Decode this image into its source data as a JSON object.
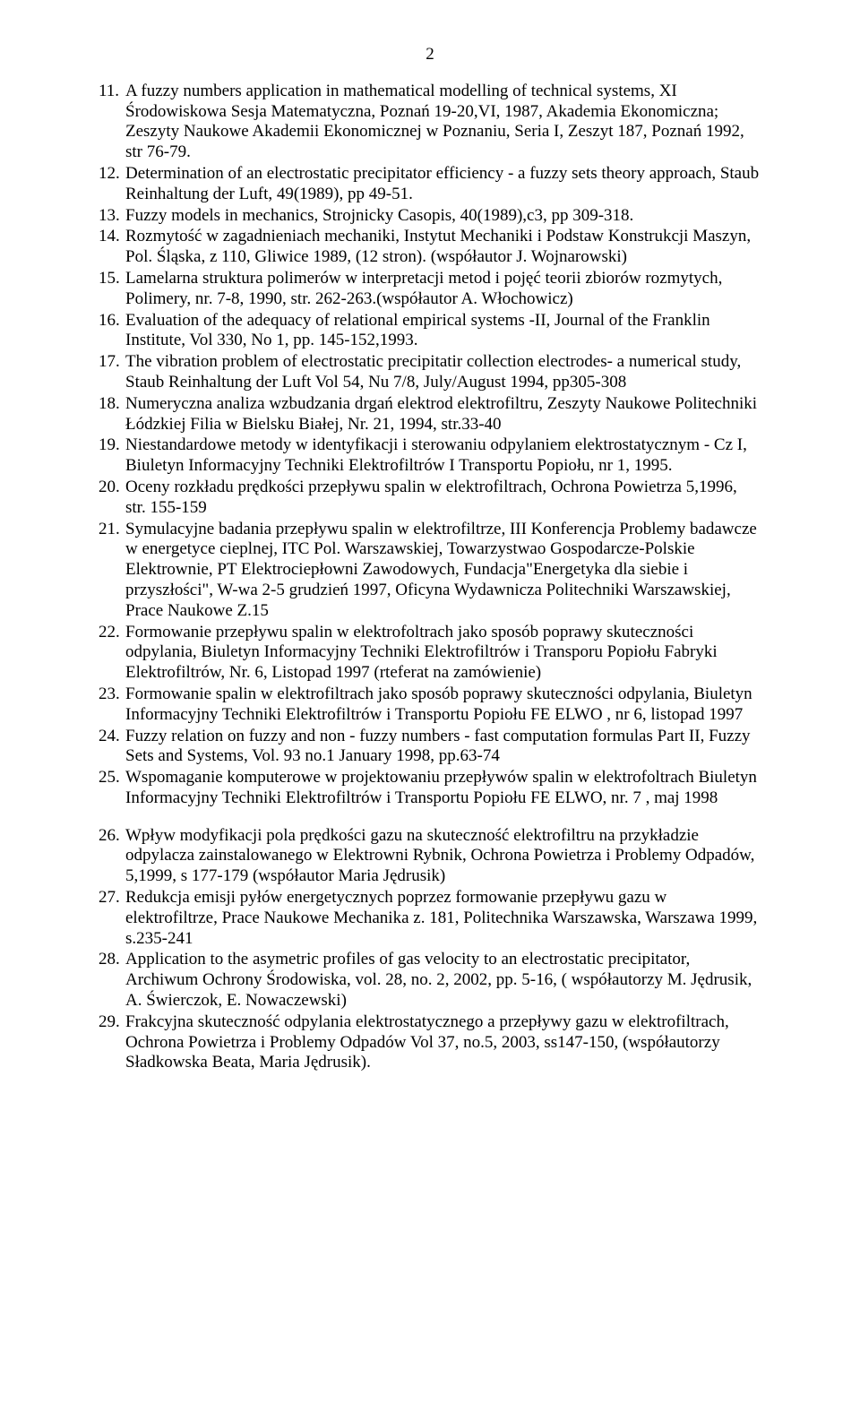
{
  "page_number": "2",
  "items": [
    {
      "n": "11.",
      "text": "A fuzzy numbers application in mathematical modelling of technical systems, XI Środowiskowa Sesja Matematyczna, Poznań 19-20,VI, 1987, Akademia Ekonomiczna; Zeszyty Naukowe Akademii Ekonomicznej w Poznaniu, Seria I, Zeszyt 187, Poznań 1992, str 76-79."
    },
    {
      "n": "12.",
      "text": "Determination of an electrostatic precipitator efficiency - a fuzzy sets theory approach, Staub Reinhaltung der Luft, 49(1989), pp 49-51."
    },
    {
      "n": "13.",
      "text": "Fuzzy models in mechanics, Strojnicky Casopis, 40(1989),c3, pp 309-318."
    },
    {
      "n": "14.",
      "text": "Rozmytość w zagadnieniach mechaniki, Instytut Mechaniki i Podstaw Konstrukcji Maszyn, Pol. Śląska, z 110, Gliwice 1989, (12 stron). (współautor J. Wojnarowski)"
    },
    {
      "n": "15.",
      "text": "Lamelarna struktura polimerów w interpretacji metod i pojęć teorii zbiorów rozmytych, Polimery, nr. 7-8, 1990, str. 262-263.(współautor A. Włochowicz)"
    },
    {
      "n": "16.",
      "text": "Evaluation of the adequacy of relational empirical systems -II, Journal of the Franklin Institute, Vol 330, No 1, pp. 145-152,1993."
    },
    {
      "n": "17.",
      "text": "The vibration problem of electrostatic precipitatir collection electrodes- a numerical study, Staub Reinhaltung der Luft Vol 54, Nu 7/8, July/August 1994, pp305-308"
    },
    {
      "n": "18.",
      "text": "Numeryczna analiza wzbudzania drgań elektrod elektrofiltru, Zeszyty Naukowe Politechniki Łódzkiej Filia w Bielsku Białej, Nr. 21, 1994, str.33-40"
    },
    {
      "n": "19.",
      "text": "Niestandardowe metody w identyfikacji i sterowaniu odpylaniem elektrostatycznym - Cz I,  Biuletyn Informacyjny Techniki Elektrofiltrów  I Transportu Popiołu, nr 1, 1995."
    },
    {
      "n": "20.",
      "text": "Oceny rozkładu prędkości przepływu spalin w elektrofiltrach,  Ochrona Powietrza 5,1996, str. 155-159"
    },
    {
      "n": "21.",
      "text": "Symulacyjne badania przepływu spalin w elektrofiltrze, III Konferencja Problemy badawcze w energetyce cieplnej, ITC Pol. Warszawskiej, Towarzystwao Gospodarcze-Polskie Elektrownie, PT Elektrociepłowni Zawodowych, Fundacja\"Energetyka dla siebie i przyszłości\", W-wa 2-5 grudzień 1997, Oficyna Wydawnicza Politechniki Warszawskiej, Prace Naukowe Z.15"
    },
    {
      "n": "22.",
      "text": "Formowanie przepływu spalin w elektrofoltrach jako sposób poprawy skuteczności odpylania, Biuletyn Informacyjny Techniki Elektrofiltrów i Transporu Popiołu Fabryki Elektrofiltrów, Nr. 6, Listopad 1997 (rteferat na zamówienie)"
    },
    {
      "n": "23.",
      "text": "Formowanie spalin w elektrofiltrach jako sposób poprawy skuteczności odpylania, Biuletyn Informacyjny Techniki Elektrofiltrów i Transportu Popiołu FE ELWO , nr 6, listopad 1997"
    },
    {
      "n": "24.",
      "text": "Fuzzy relation on fuzzy and non - fuzzy numbers -  fast computation formulas Part II, Fuzzy Sets and Systems, Vol. 93 no.1 January 1998, pp.63-74"
    },
    {
      "n": "25.",
      "text": "Wspomaganie komputerowe w projektowaniu przepływów spalin  w elektrofoltrach Biuletyn Informacyjny Techniki Elektrofiltrów i Transportu Popiołu FE ELWO,  nr. 7 , maj 1998"
    },
    {
      "n": "26.",
      "text": "Wpływ  modyfikacji pola prędkości  gazu na skuteczność  elektrofiltru na przykładzie odpylacza zainstalowanego w Elektrowni Rybnik, Ochrona Powietrza i Problemy Odpadów, 5,1999, s 177-179 (współautor Maria Jędrusik)"
    },
    {
      "n": "27.",
      "text": "Redukcja  emisji pyłów energetycznych  poprzez  formowanie przepływu gazu w elektrofiltrze,  Prace Naukowe Mechanika z. 181, Politechnika  Warszawska, Warszawa 1999, s.235-241"
    },
    {
      "n": "28.",
      "text": "Application  to the asymetric  profiles of gas velocity to an electrostatic  precipitator, Archiwum Ochrony Środowiska, vol. 28, no. 2, 2002, pp. 5-16, ( współautorzy M. Jędrusik, A. Świerczok, E. Nowaczewski)"
    },
    {
      "n": "29.",
      "text": "Frakcyjna skuteczność odpylania elektrostatycznego a przepływy gazu w elektrofiltrach, Ochrona Powietrza i Problemy Odpadów Vol 37, no.5, 2003, ss147-150, (współautorzy Sładkowska Beata, Maria Jędrusik)."
    }
  ],
  "gap_after": "25."
}
